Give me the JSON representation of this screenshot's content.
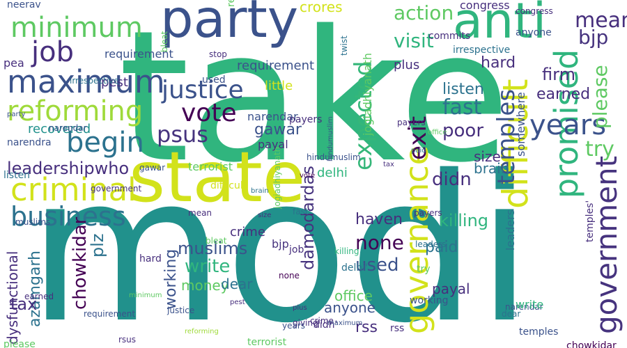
{
  "palette": [
    "#30b57e",
    "#21918c",
    "#440154",
    "#3b528b",
    "#d2e21b",
    "#5ec962",
    "#2c728e",
    "#472f7d",
    "#35b779",
    "#9fda3a",
    "#46337e",
    "#1f9e89"
  ],
  "words": [
    {
      "text": "take",
      "color": "#30b57e"
    },
    {
      "text": "modi",
      "color": "#21918c"
    },
    {
      "text": "state",
      "color": "#d2e21b"
    },
    {
      "text": "party",
      "color": "#3b528b"
    },
    {
      "text": "anti",
      "color": "#30b57e"
    },
    {
      "text": "criminal",
      "color": "#d2e21b"
    },
    {
      "text": "maximum",
      "color": "#3b528b"
    },
    {
      "text": "minimum",
      "color": "#5ec962"
    },
    {
      "text": "reforming",
      "color": "#9fda3a"
    },
    {
      "text": "begin",
      "color": "#2c728e"
    },
    {
      "text": "job",
      "color": "#472f7d"
    },
    {
      "text": "business",
      "color": "#2c728e"
    },
    {
      "text": "justice",
      "color": "#3b528b"
    },
    {
      "text": "vote",
      "color": "#440154"
    },
    {
      "text": "psus",
      "color": "#46337e"
    },
    {
      "text": "leadershipwho",
      "color": "#472f7d"
    },
    {
      "text": "governance",
      "color": "#d2e21b"
    },
    {
      "text": "expected",
      "color": "#35b779"
    },
    {
      "text": "difficult",
      "color": "#d2e21b"
    },
    {
      "text": "promised",
      "color": "#30b57e"
    },
    {
      "text": "government",
      "color": "#46337e"
    },
    {
      "text": "temples",
      "color": "#3b528b"
    },
    {
      "text": "exit",
      "color": "#440154"
    },
    {
      "text": "years",
      "color": "#3b528b"
    },
    {
      "text": "please",
      "color": "#5ec962"
    },
    {
      "text": "try",
      "color": "#5ec962"
    },
    {
      "text": "mean",
      "color": "#472f7d"
    },
    {
      "text": "bjp",
      "color": "#46337e"
    },
    {
      "text": "firm",
      "color": "#472f7d"
    },
    {
      "text": "action",
      "color": "#5ec962"
    },
    {
      "text": "visit",
      "color": "#30b57e"
    },
    {
      "text": "fast",
      "color": "#2c728e"
    },
    {
      "text": "poor",
      "color": "#472f7d"
    },
    {
      "text": "earned",
      "color": "#472f7d"
    },
    {
      "text": "listen",
      "color": "#2c728e"
    },
    {
      "text": "didn",
      "color": "#472f7d"
    },
    {
      "text": "none",
      "color": "#440154"
    },
    {
      "text": "used",
      "color": "#3b528b"
    },
    {
      "text": "damodardas",
      "color": "#46337e"
    },
    {
      "text": "chowkidar",
      "color": "#440154"
    },
    {
      "text": "azamgarh",
      "color": "#2c728e"
    },
    {
      "text": "tax",
      "color": "#472f7d"
    },
    {
      "text": "plz",
      "color": "#2c728e"
    },
    {
      "text": "muslims",
      "color": "#3b528b"
    },
    {
      "text": "working",
      "color": "#3b528b"
    },
    {
      "text": "write",
      "color": "#30b57e"
    },
    {
      "text": "money",
      "color": "#5ec962"
    },
    {
      "text": "dear",
      "color": "#2c728e"
    },
    {
      "text": "haven",
      "color": "#472f7d"
    },
    {
      "text": "killing",
      "color": "#30b57e"
    },
    {
      "text": "terrorist",
      "color": "#5ec962"
    },
    {
      "text": "gawar",
      "color": "#3b528b"
    },
    {
      "text": "recovered",
      "color": "#21918c"
    },
    {
      "text": "narendar",
      "color": "#3b528b"
    },
    {
      "text": "narendra",
      "color": "#3b528b"
    },
    {
      "text": "neerav",
      "color": "#3b528b"
    },
    {
      "text": "pest",
      "color": "#472f7d"
    },
    {
      "text": "requirement",
      "color": "#3b528b"
    },
    {
      "text": "congress",
      "color": "#472f7d"
    },
    {
      "text": "crores",
      "color": "#d2e21b"
    },
    {
      "text": "paid",
      "color": "#2c728e"
    },
    {
      "text": "payal",
      "color": "#472f7d"
    },
    {
      "text": "office",
      "color": "#5ec962"
    },
    {
      "text": "anyone",
      "color": "#3b528b"
    },
    {
      "text": "rss",
      "color": "#472f7d"
    },
    {
      "text": "brain",
      "color": "#2c728e"
    },
    {
      "text": "size",
      "color": "#472f7d"
    },
    {
      "text": "dysfunctional",
      "color": "#472f7d"
    },
    {
      "text": "irrespective",
      "color": "#2c728e"
    },
    {
      "text": "jogiadhiyanath",
      "color": "#5ec962"
    },
    {
      "text": "hindumuslim",
      "color": "#3b528b"
    },
    {
      "text": "little",
      "color": "#d2e21b"
    },
    {
      "text": "payers",
      "color": "#472f7d"
    },
    {
      "text": "commits",
      "color": "#472f7d"
    },
    {
      "text": "plus",
      "color": "#472f7d"
    },
    {
      "text": "hard",
      "color": "#472f7d"
    },
    {
      "text": "delhi",
      "color": "#30b57e"
    },
    {
      "text": "religious",
      "color": "#5ec962"
    },
    {
      "text": "crime",
      "color": "#472f7d"
    },
    {
      "text": "stop",
      "color": "#472f7d"
    },
    {
      "text": "bleat",
      "color": "#5ec962"
    },
    {
      "text": "leaders",
      "color": "#2c728e"
    },
    {
      "text": "somewhere",
      "color": "#3b528b"
    },
    {
      "text": "giving",
      "color": "#472f7d"
    },
    {
      "text": "twist",
      "color": "#2c728e"
    },
    {
      "text": "pea",
      "color": "#472f7d"
    },
    {
      "text": "rsus",
      "color": "#472f7d"
    },
    {
      "text": "didn'",
      "color": "#472f7d"
    },
    {
      "text": "temples'",
      "color": "#472f7d"
    },
    {
      "text": "delhi'",
      "color": "#2c728e"
    }
  ]
}
